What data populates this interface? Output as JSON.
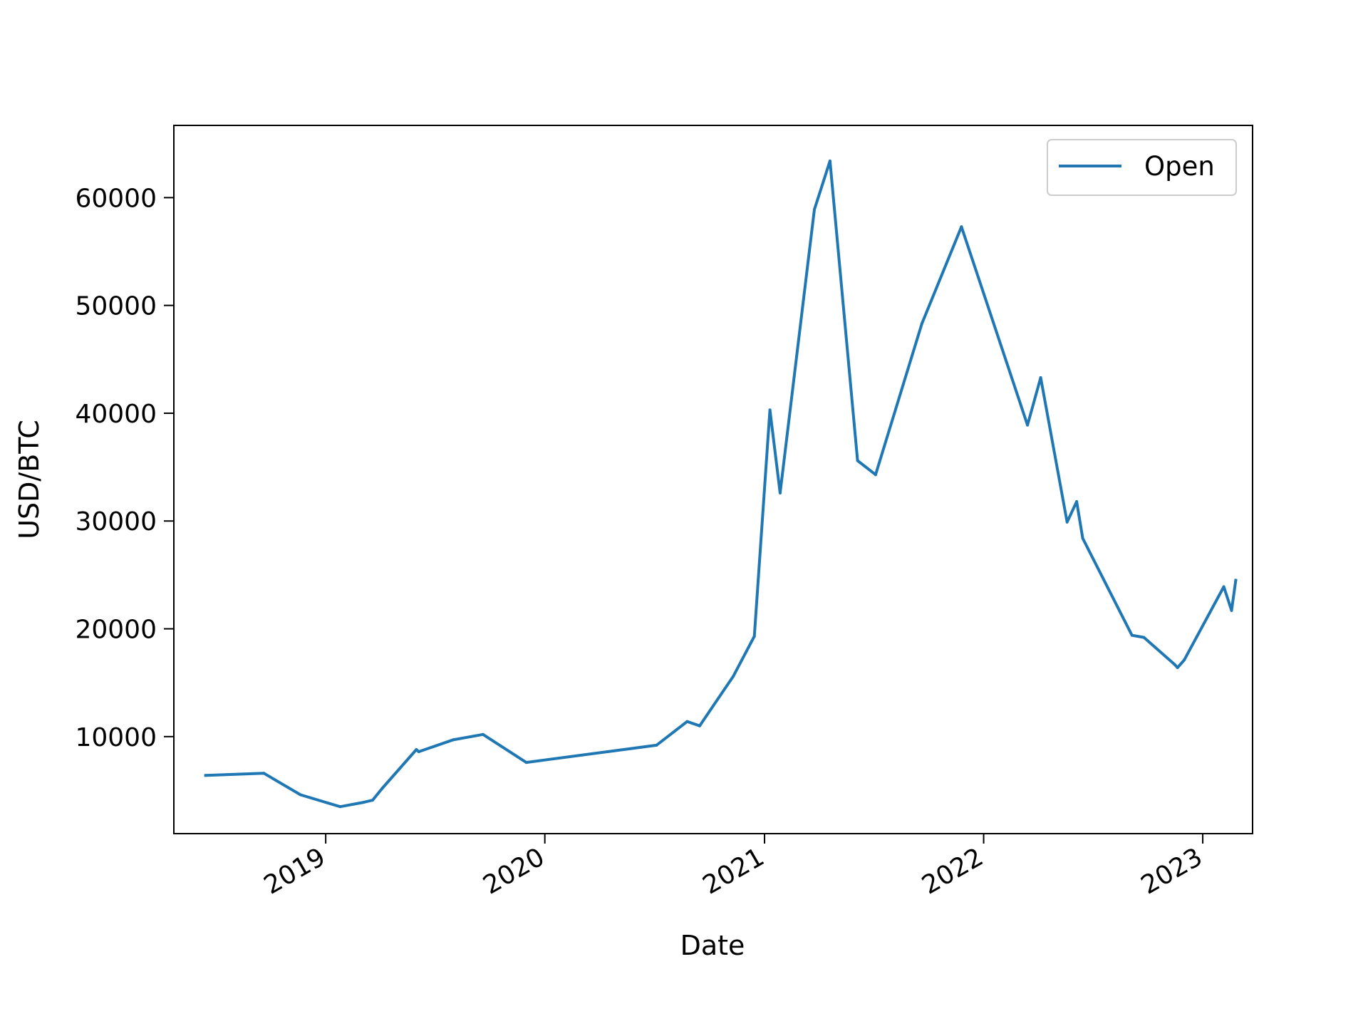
{
  "chart_data": {
    "type": "line",
    "xlabel": "Date",
    "ylabel": "USD/BTC",
    "x_tick_labels": [
      "2019",
      "2020",
      "2021",
      "2022",
      "2023"
    ],
    "y_tick_labels": [
      "10000",
      "20000",
      "30000",
      "40000",
      "50000",
      "60000"
    ],
    "xlim": [
      "2018-04-23",
      "2023-03-25"
    ],
    "ylim": [
      1000,
      66700
    ],
    "grid": false,
    "legend_position": "top-right",
    "series": [
      {
        "name": "Open",
        "color": "#1f77b4",
        "points": [
          {
            "x": "2018-06-15",
            "y": 6400
          },
          {
            "x": "2018-09-20",
            "y": 6600
          },
          {
            "x": "2018-11-20",
            "y": 4600
          },
          {
            "x": "2019-01-25",
            "y": 3500
          },
          {
            "x": "2019-03-05",
            "y": 3900
          },
          {
            "x": "2019-03-20",
            "y": 4100
          },
          {
            "x": "2019-04-05",
            "y": 5200
          },
          {
            "x": "2019-06-01",
            "y": 8800
          },
          {
            "x": "2019-06-05",
            "y": 8600
          },
          {
            "x": "2019-08-01",
            "y": 9700
          },
          {
            "x": "2019-09-20",
            "y": 10200
          },
          {
            "x": "2019-12-01",
            "y": 7600
          },
          {
            "x": "2020-07-05",
            "y": 9200
          },
          {
            "x": "2020-08-25",
            "y": 11400
          },
          {
            "x": "2020-09-15",
            "y": 11000
          },
          {
            "x": "2020-11-10",
            "y": 15600
          },
          {
            "x": "2020-12-15",
            "y": 19300
          },
          {
            "x": "2021-01-10",
            "y": 40300
          },
          {
            "x": "2021-01-27",
            "y": 32600
          },
          {
            "x": "2021-03-25",
            "y": 58900
          },
          {
            "x": "2021-04-20",
            "y": 63400
          },
          {
            "x": "2021-06-05",
            "y": 35600
          },
          {
            "x": "2021-07-05",
            "y": 34300
          },
          {
            "x": "2021-09-20",
            "y": 48300
          },
          {
            "x": "2021-11-25",
            "y": 57300
          },
          {
            "x": "2022-03-15",
            "y": 38900
          },
          {
            "x": "2022-04-06",
            "y": 43300
          },
          {
            "x": "2022-05-20",
            "y": 29900
          },
          {
            "x": "2022-06-05",
            "y": 31800
          },
          {
            "x": "2022-06-15",
            "y": 28400
          },
          {
            "x": "2022-09-05",
            "y": 19400
          },
          {
            "x": "2022-09-25",
            "y": 19200
          },
          {
            "x": "2022-11-15",
            "y": 16700
          },
          {
            "x": "2022-11-20",
            "y": 16400
          },
          {
            "x": "2022-12-01",
            "y": 17100
          },
          {
            "x": "2023-02-05",
            "y": 23900
          },
          {
            "x": "2023-02-18",
            "y": 21700
          },
          {
            "x": "2023-02-25",
            "y": 24500
          }
        ]
      }
    ]
  }
}
